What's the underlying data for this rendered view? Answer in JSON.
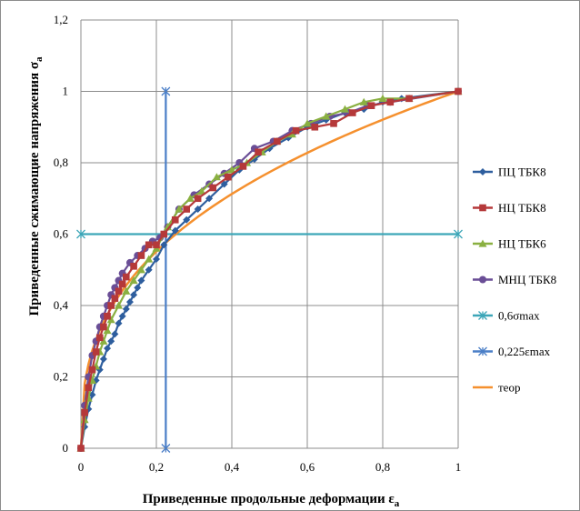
{
  "chart_data": {
    "type": "scatter",
    "xlabel": "Приведенные продольные деформации",
    "xlabel_sub": "a",
    "xlabel_symbol": "ε",
    "ylabel": "Приведенные сжимающие напряжения",
    "ylabel_symbol": "σ",
    "ylabel_sub": "a",
    "xlim": [
      0,
      1
    ],
    "ylim": [
      0,
      1.2
    ],
    "x_ticks": [
      "0",
      "0,2",
      "0,4",
      "0,6",
      "0,8",
      "1"
    ],
    "y_ticks": [
      "0",
      "0,2",
      "0,4",
      "0,6",
      "0,8",
      "1",
      "1,2"
    ],
    "grid": true,
    "legend_position": "right",
    "series": [
      {
        "name": "ПЦ ТБК8",
        "color": "#2E5E9E",
        "marker": "diamond",
        "x": [
          0,
          0.01,
          0.02,
          0.03,
          0.04,
          0.05,
          0.06,
          0.07,
          0.08,
          0.09,
          0.1,
          0.11,
          0.12,
          0.13,
          0.14,
          0.15,
          0.16,
          0.18,
          0.2,
          0.22,
          0.25,
          0.28,
          0.31,
          0.34,
          0.38,
          0.42,
          0.46,
          0.5,
          0.55,
          0.6,
          0.65,
          0.7,
          0.75,
          0.8,
          0.85,
          1.0
        ],
        "y": [
          0,
          0.06,
          0.11,
          0.15,
          0.19,
          0.22,
          0.25,
          0.28,
          0.3,
          0.32,
          0.35,
          0.37,
          0.39,
          0.41,
          0.43,
          0.45,
          0.47,
          0.5,
          0.53,
          0.57,
          0.61,
          0.64,
          0.67,
          0.7,
          0.74,
          0.78,
          0.81,
          0.84,
          0.87,
          0.9,
          0.92,
          0.94,
          0.95,
          0.97,
          0.98,
          1.0
        ]
      },
      {
        "name": "НЦ ТБК8",
        "color": "#B5393A",
        "marker": "square",
        "x": [
          0,
          0.01,
          0.02,
          0.03,
          0.04,
          0.05,
          0.06,
          0.07,
          0.08,
          0.09,
          0.1,
          0.11,
          0.12,
          0.14,
          0.16,
          0.18,
          0.2,
          0.22,
          0.25,
          0.28,
          0.31,
          0.35,
          0.39,
          0.43,
          0.47,
          0.52,
          0.57,
          0.62,
          0.67,
          0.72,
          0.77,
          0.82,
          0.87,
          1.0
        ],
        "y": [
          0,
          0.1,
          0.17,
          0.22,
          0.27,
          0.31,
          0.34,
          0.37,
          0.4,
          0.42,
          0.44,
          0.46,
          0.48,
          0.51,
          0.54,
          0.57,
          0.57,
          0.6,
          0.64,
          0.67,
          0.7,
          0.73,
          0.76,
          0.79,
          0.83,
          0.86,
          0.89,
          0.9,
          0.91,
          0.94,
          0.96,
          0.97,
          0.98,
          1.0
        ]
      },
      {
        "name": "НЦ ТБК6",
        "color": "#8AB041",
        "marker": "triangle",
        "x": [
          0,
          0.01,
          0.02,
          0.03,
          0.04,
          0.05,
          0.06,
          0.07,
          0.08,
          0.1,
          0.12,
          0.14,
          0.16,
          0.18,
          0.2,
          0.23,
          0.26,
          0.29,
          0.32,
          0.36,
          0.4,
          0.44,
          0.48,
          0.52,
          0.56,
          0.6,
          0.65,
          0.7,
          0.75,
          0.8,
          0.87,
          1.0
        ],
        "y": [
          0,
          0.08,
          0.14,
          0.19,
          0.23,
          0.27,
          0.3,
          0.33,
          0.36,
          0.4,
          0.44,
          0.47,
          0.5,
          0.53,
          0.56,
          0.62,
          0.67,
          0.7,
          0.72,
          0.76,
          0.78,
          0.8,
          0.83,
          0.86,
          0.88,
          0.91,
          0.93,
          0.95,
          0.97,
          0.98,
          0.98,
          1.0
        ]
      },
      {
        "name": "МНЦ ТБК8",
        "color": "#6A4E96",
        "marker": "circle",
        "x": [
          0,
          0.01,
          0.02,
          0.03,
          0.04,
          0.05,
          0.06,
          0.07,
          0.08,
          0.09,
          0.1,
          0.11,
          0.13,
          0.15,
          0.17,
          0.19,
          0.21,
          0.23,
          0.26,
          0.3,
          0.34,
          0.38,
          0.42,
          0.46,
          0.51,
          0.56,
          0.61,
          0.66,
          0.71,
          0.76,
          0.82,
          1.0
        ],
        "y": [
          0,
          0.12,
          0.2,
          0.26,
          0.3,
          0.34,
          0.37,
          0.4,
          0.43,
          0.45,
          0.47,
          0.49,
          0.52,
          0.54,
          0.56,
          0.58,
          0.59,
          0.62,
          0.67,
          0.71,
          0.74,
          0.77,
          0.8,
          0.84,
          0.86,
          0.89,
          0.91,
          0.93,
          0.94,
          0.96,
          0.97,
          1.0
        ]
      },
      {
        "name": "0,6σmax",
        "color": "#3CA6B8",
        "marker": "star",
        "x": [
          0,
          1
        ],
        "y": [
          0.6,
          0.6
        ]
      },
      {
        "name": "0,225εmax",
        "color": "#4A7EC7",
        "marker": "star",
        "x": [
          0.225,
          0.225
        ],
        "y": [
          0,
          1
        ]
      },
      {
        "name": "теор",
        "color": "#F5902E",
        "marker": "none",
        "formula_exponent": 0.37
      }
    ]
  }
}
